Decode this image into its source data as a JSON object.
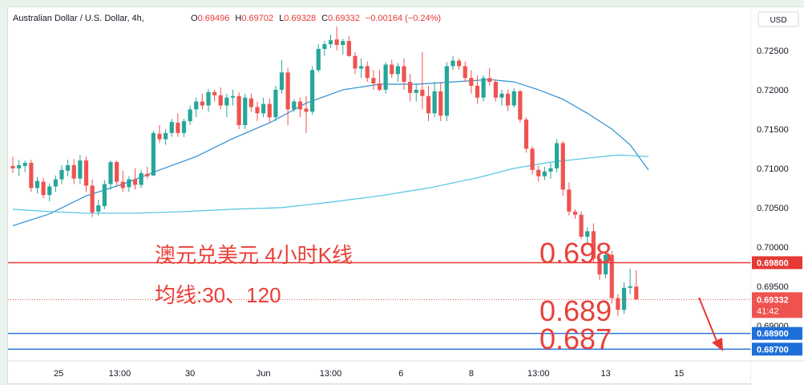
{
  "header": {
    "symbol": "Australian Dollar / U.S. Dollar, 4h,",
    "o_label": "O",
    "o_value": "0.69496",
    "h_label": "H",
    "h_value": "0.69702",
    "l_label": "L",
    "l_value": "0.69328",
    "c_label": "C",
    "c_value": "0.69332",
    "change": "−0.00164 (−0.24%)"
  },
  "currency_label": "USD",
  "annotations": {
    "title": "澳元兑美元 4小时K线",
    "ma_note": "均线:30、120",
    "level_1": "0.698",
    "level_2": "0.689",
    "level_3": "0.687"
  },
  "colors": {
    "up": "#26a69a",
    "down": "#ef5350",
    "ma_short": "#2d8fd5",
    "ma_long": "#4fc3e0",
    "red_line": "#e53935",
    "blue_line": "#1e6fd9",
    "annotation": "#e8413a"
  },
  "chart_data": {
    "type": "candlestick",
    "y_axis_ticks": [
      0.725,
      0.72,
      0.715,
      0.71,
      0.705,
      0.7,
      0.695,
      0.69
    ],
    "y_axis_labels": [
      "0.72500",
      "0.72000",
      "0.71500",
      "0.71000",
      "0.70500",
      "0.70000",
      "0.69500",
      "0.69000"
    ],
    "ylim": [
      0.6855,
      0.7305
    ],
    "x_ticks": [
      "25",
      "13:00",
      "30",
      "Jun",
      "13:00",
      "6",
      "8",
      "13:00",
      "13",
      "15"
    ],
    "x_tick_bar_index": [
      7.5,
      17.5,
      29,
      41,
      52,
      63.5,
      75,
      86,
      97,
      109
    ],
    "last_price": {
      "value": 0.69332,
      "label": "0.69332",
      "countdown": "41:42"
    },
    "horizontal_lines": [
      {
        "value": 0.698,
        "label": "0.69800",
        "color": "#e53935"
      },
      {
        "value": 0.689,
        "label": "0.68900",
        "color": "#1e6fd9"
      },
      {
        "value": 0.687,
        "label": "0.68700",
        "color": "#1e6fd9"
      }
    ],
    "candles": [
      [
        0.7103,
        0.7115,
        0.7094,
        0.71
      ],
      [
        0.71,
        0.7111,
        0.709,
        0.7104
      ],
      [
        0.7103,
        0.711,
        0.7095,
        0.7107
      ],
      [
        0.7107,
        0.7111,
        0.707,
        0.7075
      ],
      [
        0.7075,
        0.7089,
        0.7068,
        0.7084
      ],
      [
        0.7083,
        0.7088,
        0.7062,
        0.7066
      ],
      [
        0.7066,
        0.7081,
        0.7058,
        0.7077
      ],
      [
        0.7077,
        0.7091,
        0.707,
        0.7086
      ],
      [
        0.7086,
        0.7104,
        0.708,
        0.7098
      ],
      [
        0.7097,
        0.7111,
        0.709,
        0.7104
      ],
      [
        0.7104,
        0.7112,
        0.708,
        0.7087
      ],
      [
        0.7087,
        0.7117,
        0.708,
        0.711
      ],
      [
        0.711,
        0.7115,
        0.707,
        0.7078
      ],
      [
        0.7078,
        0.7086,
        0.7038,
        0.7044
      ],
      [
        0.7045,
        0.706,
        0.704,
        0.7053
      ],
      [
        0.7052,
        0.7085,
        0.7048,
        0.708
      ],
      [
        0.708,
        0.711,
        0.7073,
        0.7108
      ],
      [
        0.7108,
        0.711,
        0.7078,
        0.7083
      ],
      [
        0.7083,
        0.7097,
        0.707,
        0.7075
      ],
      [
        0.7076,
        0.709,
        0.707,
        0.7086
      ],
      [
        0.7086,
        0.71,
        0.7073,
        0.7079
      ],
      [
        0.7079,
        0.7098,
        0.7075,
        0.7094
      ],
      [
        0.7093,
        0.7102,
        0.7087,
        0.709
      ],
      [
        0.7091,
        0.7148,
        0.709,
        0.7145
      ],
      [
        0.7144,
        0.7155,
        0.7132,
        0.7137
      ],
      [
        0.7137,
        0.715,
        0.713,
        0.7145
      ],
      [
        0.7145,
        0.7163,
        0.714,
        0.7159
      ],
      [
        0.7158,
        0.717,
        0.714,
        0.7145
      ],
      [
        0.7145,
        0.7163,
        0.714,
        0.716
      ],
      [
        0.716,
        0.718,
        0.7155,
        0.7175
      ],
      [
        0.7175,
        0.719,
        0.7165,
        0.7185
      ],
      [
        0.7185,
        0.7195,
        0.7175,
        0.718
      ],
      [
        0.718,
        0.7201,
        0.7172,
        0.7197
      ],
      [
        0.7197,
        0.72,
        0.7185,
        0.7193
      ],
      [
        0.7193,
        0.7203,
        0.7175,
        0.718
      ],
      [
        0.718,
        0.7195,
        0.7165,
        0.719
      ],
      [
        0.719,
        0.72,
        0.718,
        0.7192
      ],
      [
        0.7192,
        0.7197,
        0.715,
        0.7155
      ],
      [
        0.7155,
        0.7195,
        0.715,
        0.719
      ],
      [
        0.7189,
        0.7195,
        0.7172,
        0.7178
      ],
      [
        0.7178,
        0.7185,
        0.716,
        0.717
      ],
      [
        0.717,
        0.719,
        0.7165,
        0.7182
      ],
      [
        0.7182,
        0.7189,
        0.7158,
        0.7165
      ],
      [
        0.7165,
        0.7205,
        0.716,
        0.72
      ],
      [
        0.72,
        0.7238,
        0.7195,
        0.7222
      ],
      [
        0.7222,
        0.7228,
        0.7155,
        0.7175
      ],
      [
        0.7175,
        0.7188,
        0.7172,
        0.7185
      ],
      [
        0.7185,
        0.719,
        0.7165,
        0.7175
      ],
      [
        0.7176,
        0.7192,
        0.7145,
        0.7172
      ],
      [
        0.7172,
        0.723,
        0.7168,
        0.7225
      ],
      [
        0.7225,
        0.7258,
        0.7222,
        0.7252
      ],
      [
        0.7252,
        0.7262,
        0.7243,
        0.7258
      ],
      [
        0.7258,
        0.727,
        0.7253,
        0.7263
      ],
      [
        0.7264,
        0.728,
        0.725,
        0.7257
      ],
      [
        0.7257,
        0.7265,
        0.7245,
        0.7262
      ],
      [
        0.7262,
        0.7268,
        0.7242,
        0.7243
      ],
      [
        0.7243,
        0.7248,
        0.722,
        0.7227
      ],
      [
        0.7227,
        0.724,
        0.7215,
        0.723
      ],
      [
        0.723,
        0.7236,
        0.721,
        0.7215
      ],
      [
        0.7215,
        0.7225,
        0.72,
        0.7208
      ],
      [
        0.7208,
        0.7225,
        0.7198,
        0.72
      ],
      [
        0.72,
        0.7235,
        0.7195,
        0.7232
      ],
      [
        0.7232,
        0.7238,
        0.7215,
        0.722
      ],
      [
        0.722,
        0.7234,
        0.721,
        0.723
      ],
      [
        0.723,
        0.724,
        0.72,
        0.721
      ],
      [
        0.721,
        0.722,
        0.7185,
        0.7196
      ],
      [
        0.7196,
        0.7207,
        0.7185,
        0.72
      ],
      [
        0.72,
        0.7248,
        0.7175,
        0.7192
      ],
      [
        0.7192,
        0.7205,
        0.716,
        0.717
      ],
      [
        0.717,
        0.721,
        0.7165,
        0.7198
      ],
      [
        0.7198,
        0.721,
        0.716,
        0.7167
      ],
      [
        0.7167,
        0.7235,
        0.716,
        0.723
      ],
      [
        0.723,
        0.7243,
        0.7225,
        0.7237
      ],
      [
        0.7237,
        0.724,
        0.7225,
        0.723
      ],
      [
        0.723,
        0.7236,
        0.721,
        0.7215
      ],
      [
        0.7215,
        0.7225,
        0.7195,
        0.7205
      ],
      [
        0.7205,
        0.7218,
        0.7182,
        0.719
      ],
      [
        0.719,
        0.7218,
        0.7185,
        0.7215
      ],
      [
        0.7215,
        0.7228,
        0.7205,
        0.721
      ],
      [
        0.721,
        0.7213,
        0.7185,
        0.719
      ],
      [
        0.719,
        0.72,
        0.718,
        0.7195
      ],
      [
        0.7195,
        0.72,
        0.7173,
        0.718
      ],
      [
        0.718,
        0.7202,
        0.7177,
        0.7198
      ],
      [
        0.7198,
        0.72,
        0.7158,
        0.7162
      ],
      [
        0.7162,
        0.7165,
        0.712,
        0.7125
      ],
      [
        0.7125,
        0.7128,
        0.7092,
        0.7098
      ],
      [
        0.7098,
        0.7103,
        0.7083,
        0.709
      ],
      [
        0.709,
        0.7102,
        0.7085,
        0.7096
      ],
      [
        0.7096,
        0.7107,
        0.7087,
        0.71
      ],
      [
        0.71,
        0.7137,
        0.7095,
        0.7132
      ],
      [
        0.7132,
        0.7135,
        0.7065,
        0.7073
      ],
      [
        0.7073,
        0.7082,
        0.704,
        0.7045
      ],
      [
        0.7045,
        0.7048,
        0.7036,
        0.7041
      ],
      [
        0.7041,
        0.7045,
        0.701,
        0.7013
      ],
      [
        0.7013,
        0.7025,
        0.7005,
        0.702
      ],
      [
        0.702,
        0.703,
        0.698,
        0.6985
      ],
      [
        0.6985,
        0.6992,
        0.6958,
        0.6965
      ],
      [
        0.6965,
        0.6995,
        0.696,
        0.699
      ],
      [
        0.699,
        0.6995,
        0.6928,
        0.6935
      ],
      [
        0.6935,
        0.694,
        0.6912,
        0.692
      ],
      [
        0.692,
        0.6955,
        0.6915,
        0.6948
      ],
      [
        0.6948,
        0.6972,
        0.694,
        0.695
      ],
      [
        0.69496,
        0.69702,
        0.69328,
        0.69332
      ]
    ],
    "ma_short": [
      [
        0,
        0.7027
      ],
      [
        6,
        0.7042
      ],
      [
        12,
        0.7065
      ],
      [
        18,
        0.708
      ],
      [
        24,
        0.7098
      ],
      [
        30,
        0.7115
      ],
      [
        36,
        0.7138
      ],
      [
        42,
        0.7158
      ],
      [
        48,
        0.7183
      ],
      [
        54,
        0.72
      ],
      [
        60,
        0.7207
      ],
      [
        66,
        0.7207
      ],
      [
        72,
        0.721
      ],
      [
        78,
        0.7213
      ],
      [
        82,
        0.721
      ],
      [
        86,
        0.72
      ],
      [
        90,
        0.7188
      ],
      [
        94,
        0.717
      ],
      [
        98,
        0.715
      ],
      [
        101,
        0.713
      ],
      [
        104,
        0.7098
      ]
    ],
    "ma_long": [
      [
        0,
        0.7048
      ],
      [
        6,
        0.7045
      ],
      [
        12,
        0.7043
      ],
      [
        20,
        0.7043
      ],
      [
        28,
        0.7045
      ],
      [
        36,
        0.7048
      ],
      [
        44,
        0.705
      ],
      [
        52,
        0.7057
      ],
      [
        60,
        0.7065
      ],
      [
        68,
        0.7075
      ],
      [
        76,
        0.7088
      ],
      [
        82,
        0.71
      ],
      [
        88,
        0.7108
      ],
      [
        94,
        0.7113
      ],
      [
        99,
        0.7117
      ],
      [
        104,
        0.7115
      ]
    ]
  }
}
